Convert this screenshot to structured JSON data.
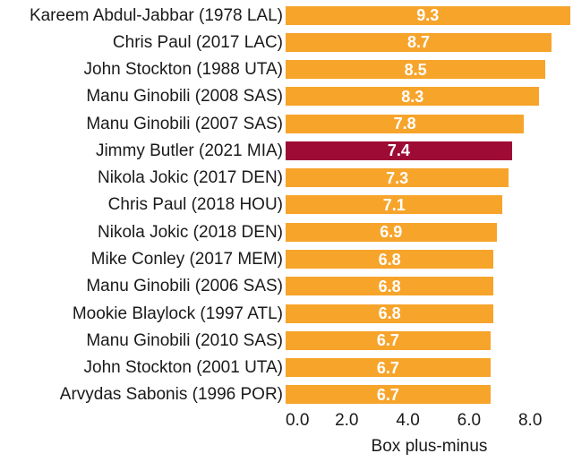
{
  "chart_data": {
    "type": "bar",
    "orientation": "horizontal",
    "title": "",
    "xlabel": "Box plus-minus",
    "ylabel": "",
    "categories": [
      "Kareem Abdul-Jabbar (1978 LAL)",
      "Chris Paul (2017 LAC)",
      "John Stockton (1988 UTA)",
      "Manu Ginobili (2008 SAS)",
      "Manu Ginobili (2007 SAS)",
      "Jimmy Butler (2021 MIA)",
      "Nikola Jokic (2017 DEN)",
      "Chris Paul (2018 HOU)",
      "Nikola Jokic (2018 DEN)",
      "Mike Conley (2017 MEM)",
      "Manu Ginobili (2006 SAS)",
      "Mookie Blaylock (1997 ATL)",
      "Manu Ginobili (2010 SAS)",
      "John Stockton (2001 UTA)",
      "Arvydas Sabonis (1996 POR)"
    ],
    "values": [
      9.3,
      8.7,
      8.5,
      8.3,
      7.8,
      7.4,
      7.3,
      7.1,
      6.9,
      6.8,
      6.8,
      6.8,
      6.7,
      6.7,
      6.7
    ],
    "value_labels": [
      "9.3",
      "8.7",
      "8.5",
      "8.3",
      "7.8",
      "7.4",
      "7.3",
      "7.1",
      "6.9",
      "6.8",
      "6.8",
      "6.8",
      "6.7",
      "6.7",
      "6.7"
    ],
    "highlight_index": 5,
    "highlight_category": "Jimmy Butler (2021 MIA)",
    "xlim": [
      0,
      9.4
    ],
    "x_tick_values": [
      0,
      2,
      4,
      6,
      8
    ],
    "x_tick_labels": [
      "0.0",
      "2.0",
      "4.0",
      "6.0",
      "8.0"
    ],
    "grid": "off",
    "legend": "none",
    "value_label_position": "inside-center",
    "colors": {
      "bar": "#F7A42B",
      "highlight_bar": "#9E0B35",
      "value_text": "#FFFFFF",
      "label_text": "#1A1A1A",
      "background": "#FFFFFF"
    }
  }
}
